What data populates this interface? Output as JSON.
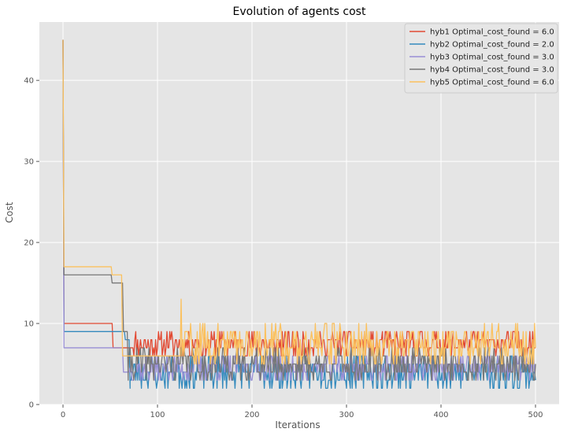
{
  "chart_data": {
    "type": "line",
    "title": "Evolution of agents cost",
    "xlabel": "Iterations",
    "ylabel": "Cost",
    "xlim": [
      -25,
      525
    ],
    "ylim": [
      0,
      47.2
    ],
    "x_ticks": [
      0,
      100,
      200,
      300,
      400,
      500
    ],
    "y_ticks": [
      0,
      10,
      20,
      30,
      40
    ],
    "grid": true,
    "legend_position": "top-right",
    "background": "#E5E5E5",
    "grid_color": "#FFFFFF",
    "series": [
      {
        "name": "hyb1 Optimal_cost_found = 6.0",
        "color": "#E24A33",
        "key_points": [
          [
            0,
            45
          ],
          [
            1,
            10
          ],
          [
            52,
            10
          ],
          [
            53,
            7
          ],
          [
            70,
            7
          ],
          [
            75,
            8
          ],
          [
            120,
            7
          ],
          [
            500,
            7
          ]
        ],
        "noise": {
          "from": 72,
          "to": 500,
          "low": 6,
          "high": 9,
          "seed": 11
        }
      },
      {
        "name": "hyb2 Optimal_cost_found = 2.0",
        "color": "#348ABD",
        "key_points": [
          [
            0,
            45
          ],
          [
            1,
            9
          ],
          [
            65,
            9
          ],
          [
            66,
            8
          ],
          [
            70,
            8
          ],
          [
            71,
            2
          ],
          [
            500,
            2
          ]
        ],
        "noise": {
          "from": 71,
          "to": 500,
          "low": 2,
          "high": 6,
          "seed": 23
        }
      },
      {
        "name": "hyb3 Optimal_cost_found = 3.0",
        "color": "#988ED5",
        "key_points": [
          [
            0,
            45
          ],
          [
            1,
            7
          ],
          [
            63,
            7
          ],
          [
            64,
            4
          ],
          [
            70,
            4
          ],
          [
            71,
            4.5
          ],
          [
            125,
            4.5
          ],
          [
            500,
            4
          ]
        ],
        "noise": {
          "from": 71,
          "to": 500,
          "low": 3,
          "high": 6,
          "seed": 37
        }
      },
      {
        "name": "hyb4 Optimal_cost_found = 3.0",
        "color": "#777777",
        "key_points": [
          [
            0,
            45
          ],
          [
            1,
            16
          ],
          [
            51,
            16
          ],
          [
            52,
            15
          ],
          [
            63,
            15
          ],
          [
            64,
            9
          ],
          [
            68,
            9
          ],
          [
            69,
            3
          ],
          [
            500,
            3
          ]
        ],
        "noise": {
          "from": 69,
          "to": 500,
          "low": 3,
          "high": 7,
          "seed": 41
        }
      },
      {
        "name": "hyb5 Optimal_cost_found = 6.0",
        "color": "#FBC15E",
        "key_points": [
          [
            0,
            45
          ],
          [
            1,
            17
          ],
          [
            51,
            17
          ],
          [
            52,
            16
          ],
          [
            62,
            16
          ],
          [
            63,
            6
          ],
          [
            124,
            6
          ],
          [
            125,
            13
          ],
          [
            126,
            6
          ],
          [
            500,
            6
          ]
        ],
        "noise": {
          "from": 126,
          "to": 500,
          "low": 5,
          "high": 10,
          "seed": 59
        }
      }
    ]
  }
}
